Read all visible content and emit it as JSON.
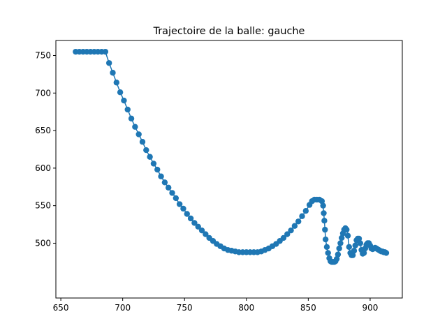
{
  "chart_data": {
    "type": "line",
    "title": "Trajectoire de la balle: gauche",
    "xlabel": "",
    "ylabel": "",
    "xlim": [
      646,
      926
    ],
    "ylim": [
      427,
      770
    ],
    "xticks": [
      650,
      700,
      750,
      800,
      850,
      900
    ],
    "yticks": [
      500,
      550,
      600,
      650,
      700,
      750
    ],
    "grid": false,
    "legend": false,
    "marker": "circle",
    "color": "#1f77b4",
    "series": [
      {
        "x": [
          662,
          665,
          668,
          671,
          674,
          677,
          680,
          683,
          686,
          689,
          692,
          695,
          698,
          701,
          704,
          707,
          710,
          713,
          716,
          719,
          722,
          725,
          728,
          731,
          734,
          737,
          740,
          743,
          746,
          749,
          752,
          755,
          758,
          761,
          764,
          767,
          770,
          773,
          776,
          779,
          782,
          785,
          788,
          791,
          794,
          797,
          800,
          803,
          806,
          809,
          812,
          815,
          818,
          821,
          824,
          827,
          830,
          833,
          836,
          839,
          842,
          845,
          848,
          851,
          853,
          855,
          857,
          859,
          861,
          862,
          862.5,
          863,
          863.5,
          864,
          865,
          866,
          867,
          868,
          869,
          870,
          871,
          872,
          873,
          874,
          875,
          876,
          877,
          878,
          879,
          880,
          881,
          882,
          883,
          884,
          885,
          886,
          887,
          888,
          889,
          890,
          891,
          892,
          893,
          894,
          895,
          896,
          897,
          898,
          899,
          900,
          901,
          902,
          903,
          904,
          905,
          906,
          907,
          908,
          909,
          910,
          911,
          912,
          913
        ],
        "y": [
          755,
          755,
          755,
          755,
          755,
          755,
          755,
          755,
          755,
          740,
          727,
          714,
          701,
          690,
          678,
          666,
          655,
          645,
          635,
          624,
          615,
          606,
          598,
          589,
          581,
          574,
          567,
          560,
          552,
          546,
          539,
          533,
          527,
          522,
          517,
          512,
          507,
          503,
          499,
          496,
          493,
          491,
          490,
          489,
          488,
          488,
          488,
          488,
          488,
          488,
          489,
          491,
          493,
          496,
          499,
          503,
          507,
          512,
          517,
          523,
          529,
          536,
          543,
          551,
          556,
          558,
          558,
          558,
          556,
          550,
          540,
          530,
          518,
          505,
          495,
          487,
          480,
          476,
          475,
          475,
          475,
          476,
          479,
          485,
          493,
          500,
          507,
          513,
          518,
          520,
          518,
          510,
          495,
          487,
          484,
          484,
          490,
          497,
          504,
          506,
          506,
          500,
          491,
          486,
          487,
          493,
          498,
          500,
          500,
          497,
          493,
          492,
          493,
          494,
          493,
          492,
          491,
          490,
          489,
          489,
          488,
          488,
          487
        ]
      }
    ]
  }
}
